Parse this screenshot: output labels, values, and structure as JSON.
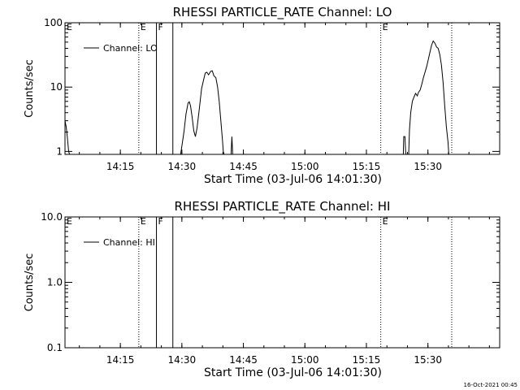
{
  "footer": {
    "timestamp": "16-Oct-2021 00:45"
  },
  "chart_data": [
    {
      "type": "line",
      "title": "RHESSI PARTICLE_RATE Channel: LO",
      "xlabel": "Start Time (03-Jul-06 14:01:30)",
      "ylabel": "Counts/sec",
      "yscale": "log",
      "xlim_minutes": [
        0,
        106
      ],
      "ylim": [
        0.9,
        100
      ],
      "x_ticks": [
        {
          "label": "14:15",
          "m": 13.5
        },
        {
          "label": "14:30",
          "m": 28.5
        },
        {
          "label": "14:45",
          "m": 43.5
        },
        {
          "label": "15:00",
          "m": 58.5
        },
        {
          "label": "15:15",
          "m": 73.5
        },
        {
          "label": "15:30",
          "m": 88.5
        }
      ],
      "y_ticks": [
        {
          "label": "1",
          "v": 1
        },
        {
          "label": "10",
          "v": 10
        },
        {
          "label": "100",
          "v": 100
        }
      ],
      "legend": {
        "label": "Channel: LO",
        "position": "top-left"
      },
      "markers": [
        {
          "m": 18.0,
          "style": "dotted",
          "label": "E"
        },
        {
          "m": 22.3,
          "style": "solid",
          "label": "F"
        },
        {
          "m": 26.3,
          "style": "solid",
          "label": ""
        },
        {
          "m": 77.0,
          "style": "dotted",
          "label": "E"
        },
        {
          "m": 94.3,
          "style": "dotted",
          "label": ""
        }
      ],
      "series": [
        {
          "name": "Channel: LO",
          "segments": [
            [
              [
                0.0,
                3.0
              ],
              [
                0.3,
                2.4
              ],
              [
                0.6,
                1.6
              ],
              [
                0.9,
                1.0
              ],
              [
                1.1,
                0.9
              ]
            ],
            [
              [
                28.2,
                0.9
              ],
              [
                28.5,
                1.2
              ],
              [
                29.0,
                2.0
              ],
              [
                29.5,
                3.8
              ],
              [
                30.0,
                5.6
              ],
              [
                30.3,
                5.9
              ],
              [
                30.6,
                5.2
              ],
              [
                31.0,
                3.4
              ],
              [
                31.4,
                2.1
              ],
              [
                31.8,
                1.7
              ],
              [
                32.2,
                2.3
              ],
              [
                32.8,
                4.8
              ],
              [
                33.3,
                9.5
              ],
              [
                33.8,
                13.0
              ],
              [
                34.2,
                16.5
              ],
              [
                34.6,
                17.0
              ],
              [
                35.0,
                15.5
              ],
              [
                35.5,
                17.5
              ],
              [
                35.9,
                18.0
              ],
              [
                36.3,
                15.0
              ],
              [
                36.8,
                14.0
              ],
              [
                37.2,
                10.0
              ],
              [
                37.6,
                6.0
              ],
              [
                38.0,
                3.0
              ],
              [
                38.4,
                1.5
              ],
              [
                38.6,
                1.0
              ],
              [
                38.8,
                0.9
              ]
            ],
            [
              [
                40.5,
                0.9
              ],
              [
                40.7,
                1.7
              ],
              [
                40.9,
                0.9
              ]
            ],
            [
              [
                82.5,
                0.9
              ],
              [
                82.6,
                1.7
              ],
              [
                82.9,
                1.7
              ],
              [
                83.1,
                0.9
              ]
            ],
            [
              [
                83.8,
                0.9
              ],
              [
                84.0,
                2.2
              ],
              [
                84.3,
                4.0
              ],
              [
                84.7,
                6.0
              ],
              [
                85.1,
                7.0
              ],
              [
                85.5,
                8.0
              ],
              [
                85.9,
                7.3
              ],
              [
                86.2,
                8.3
              ],
              [
                86.6,
                9.0
              ],
              [
                87.0,
                11.0
              ],
              [
                87.4,
                14.0
              ],
              [
                87.8,
                17.0
              ],
              [
                88.2,
                21.0
              ],
              [
                88.6,
                27.0
              ],
              [
                89.0,
                35.0
              ],
              [
                89.4,
                45.0
              ],
              [
                89.8,
                52.0
              ],
              [
                90.2,
                48.0
              ],
              [
                90.6,
                42.0
              ],
              [
                91.0,
                40.0
              ],
              [
                91.4,
                32.0
              ],
              [
                91.8,
                22.0
              ],
              [
                92.2,
                12.0
              ],
              [
                92.6,
                5.0
              ],
              [
                93.0,
                2.4
              ],
              [
                93.4,
                1.4
              ],
              [
                93.6,
                0.9
              ]
            ]
          ]
        }
      ]
    },
    {
      "type": "line",
      "title": "RHESSI PARTICLE_RATE Channel: HI",
      "xlabel": "Start Time (03-Jul-06 14:01:30)",
      "ylabel": "Counts/sec",
      "yscale": "log",
      "xlim_minutes": [
        0,
        106
      ],
      "ylim": [
        0.1,
        10
      ],
      "x_ticks": [
        {
          "label": "14:15",
          "m": 13.5
        },
        {
          "label": "14:30",
          "m": 28.5
        },
        {
          "label": "14:45",
          "m": 43.5
        },
        {
          "label": "15:00",
          "m": 58.5
        },
        {
          "label": "15:15",
          "m": 73.5
        },
        {
          "label": "15:30",
          "m": 88.5
        }
      ],
      "y_ticks": [
        {
          "label": "0.1",
          "v": 0.1
        },
        {
          "label": "1.0",
          "v": 1
        },
        {
          "label": "10.0",
          "v": 10
        }
      ],
      "legend": {
        "label": "Channel: HI",
        "position": "top-left"
      },
      "markers": [
        {
          "m": 18.0,
          "style": "dotted",
          "label": "E"
        },
        {
          "m": 22.3,
          "style": "solid",
          "label": "F"
        },
        {
          "m": 26.3,
          "style": "solid",
          "label": ""
        },
        {
          "m": 77.0,
          "style": "dotted",
          "label": "E"
        },
        {
          "m": 94.3,
          "style": "dotted",
          "label": ""
        }
      ],
      "series": [
        {
          "name": "Channel: HI",
          "segments": []
        }
      ]
    }
  ]
}
